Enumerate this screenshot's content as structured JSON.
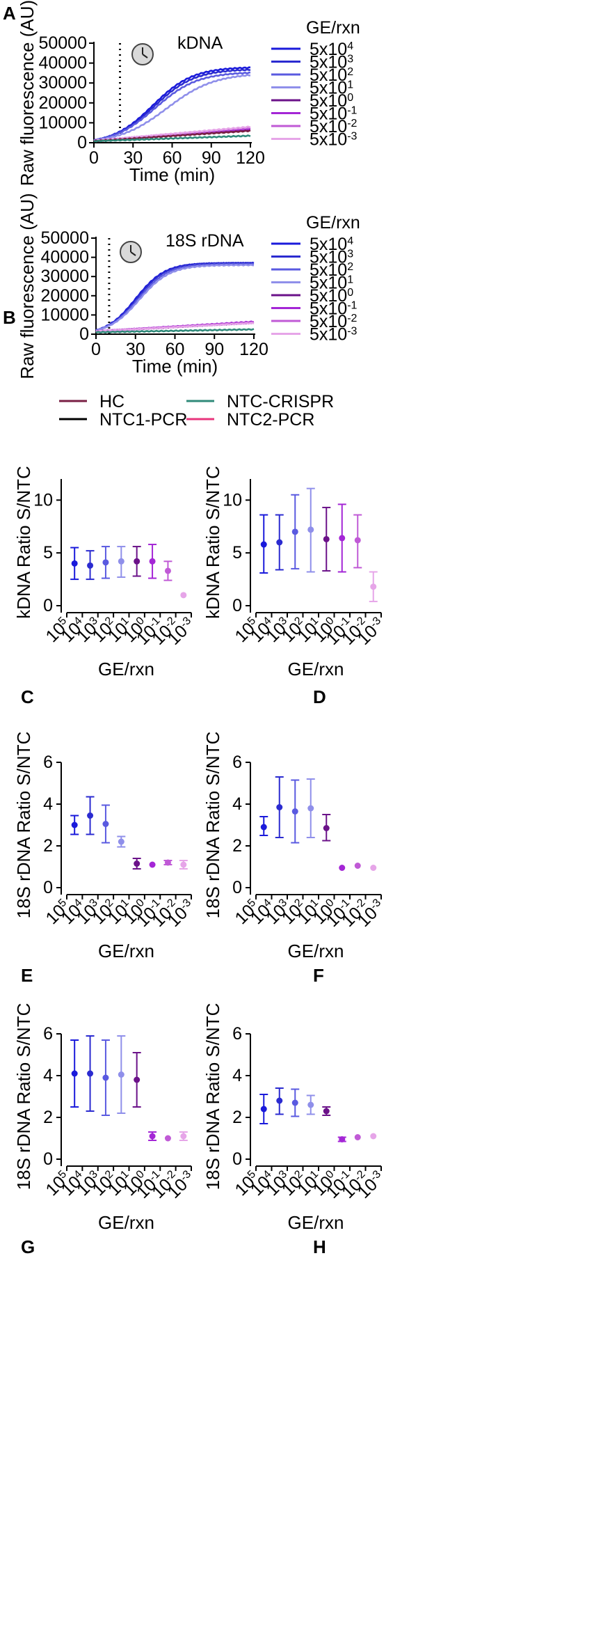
{
  "colors": {
    "gradient": [
      "#1a1adb",
      "#2b2bd0",
      "#5a5ae0",
      "#8f8fea",
      "#6b1289",
      "#a426d6",
      "#c05ad6",
      "#e6a5e8"
    ],
    "HC": "#7a1f44",
    "NTC1-PCR": "#000000",
    "NTC-CRISPR": "#2f8a7a",
    "NTC2-PCR": "#e8357c"
  },
  "gexn_label": "GE/rxn",
  "conc_labels": [
    {
      "base": "5x10",
      "exp": "4"
    },
    {
      "base": "5x10",
      "exp": "3"
    },
    {
      "base": "5x10",
      "exp": "2"
    },
    {
      "base": "5x10",
      "exp": "1"
    },
    {
      "base": "5x10",
      "exp": "0"
    },
    {
      "base": "5x10",
      "exp": "-1"
    },
    {
      "base": "5x10",
      "exp": "-2"
    },
    {
      "base": "5x10",
      "exp": "-3"
    }
  ],
  "x_cat_labels": [
    {
      "base": "10",
      "exp": "5"
    },
    {
      "base": "10",
      "exp": "4"
    },
    {
      "base": "10",
      "exp": "3"
    },
    {
      "base": "10",
      "exp": "2"
    },
    {
      "base": "10",
      "exp": "1"
    },
    {
      "base": "10",
      "exp": "0"
    },
    {
      "base": "10",
      "exp": "-1"
    },
    {
      "base": "10",
      "exp": "-2"
    },
    {
      "base": "10",
      "exp": "-3"
    }
  ],
  "legend": {
    "items": [
      "HC",
      "NTC-CRISPR",
      "NTC1-PCR",
      "NTC2-PCR"
    ]
  },
  "chart_data": [
    {
      "id": "A",
      "type": "line",
      "title": "kDNA",
      "xlabel": "Time (min)",
      "ylabel": "Raw fluorescence (AU)",
      "xlim": [
        0,
        120
      ],
      "ylim": [
        0,
        50000
      ],
      "xticks": [
        0,
        30,
        60,
        90,
        120
      ],
      "yticks": [
        0,
        10000,
        20000,
        30000,
        40000,
        50000
      ],
      "marker_line_x": 20,
      "series": [
        {
          "name": "5x10^4",
          "plateau": 38000,
          "k": 0.065,
          "x0": 45,
          "base": 1200
        },
        {
          "name": "5x10^3",
          "plateau": 37000,
          "k": 0.064,
          "x0": 46,
          "base": 1200
        },
        {
          "name": "5x10^2",
          "plateau": 35500,
          "k": 0.062,
          "x0": 47,
          "base": 1200
        },
        {
          "name": "5x10^1",
          "plateau": 35000,
          "k": 0.055,
          "x0": 56,
          "base": 1200
        },
        {
          "name": "5x10^0",
          "linear_end": 6500,
          "base": 1000
        },
        {
          "name": "5x10^-1",
          "linear_end": 7000,
          "base": 1000
        },
        {
          "name": "5x10^-2",
          "linear_end": 7500,
          "base": 1000
        },
        {
          "name": "5x10^-3",
          "linear_end": 8000,
          "base": 1000
        },
        {
          "name": "HC",
          "linear_end": 6000,
          "base": 800
        },
        {
          "name": "NTC-CRISPR",
          "linear_end": 3500,
          "base": 800
        }
      ]
    },
    {
      "id": "B",
      "type": "line",
      "title": "18S rDNA",
      "xlabel": "Time (min)",
      "ylabel": "Raw fluorescence (AU)",
      "xlim": [
        0,
        120
      ],
      "ylim": [
        0,
        50000
      ],
      "xticks": [
        0,
        30,
        60,
        90,
        120
      ],
      "yticks": [
        0,
        10000,
        20000,
        30000,
        40000,
        50000
      ],
      "marker_line_x": 10,
      "series": [
        {
          "name": "5x10^4",
          "plateau": 37000,
          "k": 0.09,
          "x0": 30,
          "base": 2000
        },
        {
          "name": "5x10^3",
          "plateau": 37000,
          "k": 0.09,
          "x0": 31,
          "base": 2000
        },
        {
          "name": "5x10^2",
          "plateau": 36500,
          "k": 0.088,
          "x0": 32,
          "base": 2000
        },
        {
          "name": "5x10^1",
          "plateau": 36000,
          "k": 0.086,
          "x0": 33,
          "base": 2000
        },
        {
          "name": "5x10^0",
          "linear_end": 6000,
          "base": 1500
        },
        {
          "name": "5x10^-1",
          "linear_end": 6500,
          "base": 1500
        },
        {
          "name": "5x10^-2",
          "linear_end": 6200,
          "base": 1500
        },
        {
          "name": "5x10^-3",
          "linear_end": 5800,
          "base": 1500
        },
        {
          "name": "NTC-CRISPR",
          "linear_end": 2500,
          "base": 1000
        }
      ]
    },
    {
      "id": "C",
      "type": "scatter",
      "subtype": "errorbar",
      "ylabel": "kDNA Ratio S/NTC",
      "xlabel": "GE/rxn",
      "ylim": [
        0,
        12
      ],
      "yticks": [
        0,
        5,
        10
      ],
      "points": [
        {
          "x": 0.5,
          "y": 4.0,
          "err": [
            2.5,
            5.5
          ],
          "c": 0
        },
        {
          "x": 1.5,
          "y": 3.8,
          "err": [
            2.5,
            5.2
          ],
          "c": 1
        },
        {
          "x": 2.5,
          "y": 4.1,
          "err": [
            2.6,
            5.6
          ],
          "c": 2
        },
        {
          "x": 3.5,
          "y": 4.2,
          "err": [
            2.7,
            5.6
          ],
          "c": 3
        },
        {
          "x": 4.5,
          "y": 4.2,
          "err": [
            2.8,
            5.6
          ],
          "c": 4
        },
        {
          "x": 5.5,
          "y": 4.2,
          "err": [
            2.6,
            5.8
          ],
          "c": 5
        },
        {
          "x": 6.5,
          "y": 3.3,
          "err": [
            2.4,
            4.2
          ],
          "c": 6
        },
        {
          "x": 7.5,
          "y": 1.0,
          "err": null,
          "c": 7
        }
      ]
    },
    {
      "id": "D",
      "type": "scatter",
      "subtype": "errorbar",
      "ylabel": "kDNA Ratio S/NTC",
      "xlabel": "GE/rxn",
      "ylim": [
        0,
        12
      ],
      "yticks": [
        0,
        5,
        10
      ],
      "points": [
        {
          "x": 0.5,
          "y": 5.8,
          "err": [
            3.1,
            8.6
          ],
          "c": 0
        },
        {
          "x": 1.5,
          "y": 6.0,
          "err": [
            3.4,
            8.6
          ],
          "c": 1
        },
        {
          "x": 2.5,
          "y": 7.0,
          "err": [
            3.5,
            10.5
          ],
          "c": 2
        },
        {
          "x": 3.5,
          "y": 7.2,
          "err": [
            3.2,
            11.1
          ],
          "c": 3
        },
        {
          "x": 4.5,
          "y": 6.3,
          "err": [
            3.3,
            9.3
          ],
          "c": 4
        },
        {
          "x": 5.5,
          "y": 6.4,
          "err": [
            3.2,
            9.6
          ],
          "c": 5
        },
        {
          "x": 6.5,
          "y": 6.2,
          "err": [
            3.6,
            8.6
          ],
          "c": 6
        },
        {
          "x": 7.5,
          "y": 1.8,
          "err": [
            0.4,
            3.2
          ],
          "c": 7
        }
      ]
    },
    {
      "id": "E",
      "type": "scatter",
      "subtype": "errorbar",
      "ylabel": "18S rDNA Ratio S/NTC",
      "xlabel": "GE/rxn",
      "ylim": [
        0,
        6
      ],
      "yticks": [
        0,
        2,
        4,
        6
      ],
      "points": [
        {
          "x": 0.5,
          "y": 3.0,
          "err": [
            2.55,
            3.45
          ],
          "c": 0
        },
        {
          "x": 1.5,
          "y": 3.45,
          "err": [
            2.55,
            4.35
          ],
          "c": 1
        },
        {
          "x": 2.5,
          "y": 3.05,
          "err": [
            2.15,
            3.95
          ],
          "c": 2
        },
        {
          "x": 3.5,
          "y": 2.2,
          "err": [
            1.95,
            2.45
          ],
          "c": 3
        },
        {
          "x": 4.5,
          "y": 1.15,
          "err": [
            0.9,
            1.4
          ],
          "c": 4
        },
        {
          "x": 5.5,
          "y": 1.1,
          "err": null,
          "c": 5
        },
        {
          "x": 6.5,
          "y": 1.2,
          "err": [
            1.1,
            1.3
          ],
          "c": 6
        },
        {
          "x": 7.5,
          "y": 1.1,
          "err": [
            0.9,
            1.3
          ],
          "c": 7
        }
      ]
    },
    {
      "id": "F",
      "type": "scatter",
      "subtype": "errorbar",
      "ylabel": "18S rDNA Ratio S/NTC",
      "xlabel": "GE/rxn",
      "ylim": [
        0,
        6
      ],
      "yticks": [
        0,
        2,
        4,
        6
      ],
      "points": [
        {
          "x": 0.5,
          "y": 2.9,
          "err": [
            2.5,
            3.4
          ],
          "c": 0
        },
        {
          "x": 1.5,
          "y": 3.85,
          "err": [
            2.4,
            5.3
          ],
          "c": 1
        },
        {
          "x": 2.5,
          "y": 3.65,
          "err": [
            2.15,
            5.15
          ],
          "c": 2
        },
        {
          "x": 3.5,
          "y": 3.8,
          "err": [
            2.4,
            5.2
          ],
          "c": 3
        },
        {
          "x": 4.5,
          "y": 2.85,
          "err": [
            2.25,
            3.5
          ],
          "c": 4
        },
        {
          "x": 5.5,
          "y": 0.95,
          "err": null,
          "c": 5
        },
        {
          "x": 6.5,
          "y": 1.05,
          "err": null,
          "c": 6
        },
        {
          "x": 7.5,
          "y": 0.95,
          "err": null,
          "c": 7
        }
      ]
    },
    {
      "id": "G",
      "type": "scatter",
      "subtype": "errorbar",
      "ylabel": "18S rDNA Ratio S/NTC",
      "xlabel": "GE/rxn",
      "ylim": [
        0,
        6
      ],
      "yticks": [
        0,
        2,
        4,
        6
      ],
      "points": [
        {
          "x": 0.5,
          "y": 4.1,
          "err": [
            2.5,
            5.7
          ],
          "c": 0
        },
        {
          "x": 1.5,
          "y": 4.1,
          "err": [
            2.3,
            5.9
          ],
          "c": 1
        },
        {
          "x": 2.5,
          "y": 3.9,
          "err": [
            2.1,
            5.7
          ],
          "c": 2
        },
        {
          "x": 3.5,
          "y": 4.05,
          "err": [
            2.2,
            5.9
          ],
          "c": 3
        },
        {
          "x": 4.5,
          "y": 3.8,
          "err": [
            2.5,
            5.1
          ],
          "c": 4
        },
        {
          "x": 5.5,
          "y": 1.1,
          "err": [
            0.9,
            1.3
          ],
          "c": 5
        },
        {
          "x": 6.5,
          "y": 1.0,
          "err": null,
          "c": 6
        },
        {
          "x": 7.5,
          "y": 1.1,
          "err": [
            0.9,
            1.3
          ],
          "c": 7
        }
      ]
    },
    {
      "id": "H",
      "type": "scatter",
      "subtype": "errorbar",
      "ylabel": "18S rDNA Ratio S/NTC",
      "xlabel": "GE/rxn",
      "ylim": [
        0,
        6
      ],
      "yticks": [
        0,
        2,
        4,
        6
      ],
      "points": [
        {
          "x": 0.5,
          "y": 2.4,
          "err": [
            1.7,
            3.1
          ],
          "c": 0
        },
        {
          "x": 1.5,
          "y": 2.8,
          "err": [
            2.15,
            3.4
          ],
          "c": 1
        },
        {
          "x": 2.5,
          "y": 2.7,
          "err": [
            2.05,
            3.35
          ],
          "c": 2
        },
        {
          "x": 3.5,
          "y": 2.6,
          "err": [
            2.15,
            3.05
          ],
          "c": 3
        },
        {
          "x": 4.5,
          "y": 2.3,
          "err": [
            2.1,
            2.5
          ],
          "c": 4
        },
        {
          "x": 5.5,
          "y": 0.95,
          "err": [
            0.85,
            1.05
          ],
          "c": 5
        },
        {
          "x": 6.5,
          "y": 1.05,
          "err": null,
          "c": 6
        },
        {
          "x": 7.5,
          "y": 1.1,
          "err": null,
          "c": 7
        }
      ]
    }
  ]
}
